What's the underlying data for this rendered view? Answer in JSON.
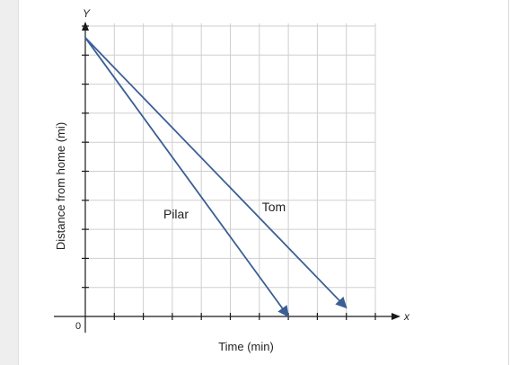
{
  "chart_data": {
    "type": "line",
    "xlabel": "Time (min)",
    "ylabel": "Distance from home (mi)",
    "x_axis_letter": "x",
    "y_axis_letter": "Y",
    "origin_label": "0",
    "xlim": [
      0,
      10
    ],
    "ylim": [
      0,
      10
    ],
    "grid": true,
    "legend": "none",
    "series": [
      {
        "name": "Pilar",
        "x": [
          0,
          7
        ],
        "y": [
          9.6,
          0
        ],
        "color": "#3b5e95",
        "end_arrow": true
      },
      {
        "name": "Tom",
        "x": [
          0,
          9
        ],
        "y": [
          9.6,
          0.3
        ],
        "color": "#3b5e95",
        "end_arrow": true
      }
    ]
  }
}
